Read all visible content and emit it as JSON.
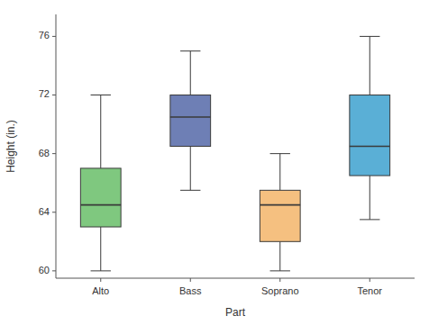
{
  "chart_data": {
    "type": "box",
    "categories": [
      "Alto",
      "Bass",
      "Soprano",
      "Tenor"
    ],
    "values": [
      {
        "whislo": 60,
        "q1": 63,
        "med": 64.5,
        "q3": 67,
        "whishi": 72
      },
      {
        "whislo": 65.5,
        "q1": 68.5,
        "med": 70.5,
        "q3": 72,
        "whishi": 75
      },
      {
        "whislo": 60,
        "q1": 62,
        "med": 64.5,
        "q3": 65.5,
        "whishi": 68
      },
      {
        "whislo": 63.5,
        "q1": 66.5,
        "med": 68.5,
        "q3": 72,
        "whishi": 76
      }
    ],
    "colors": [
      "#7fc87f",
      "#6e7fb5",
      "#f5c080",
      "#5aafd6"
    ],
    "xlabel": "Part",
    "ylabel": "Height (in.)",
    "ylim": [
      59.5,
      77.5
    ],
    "yticks": [
      60,
      64,
      68,
      72,
      76
    ],
    "grid": false
  }
}
